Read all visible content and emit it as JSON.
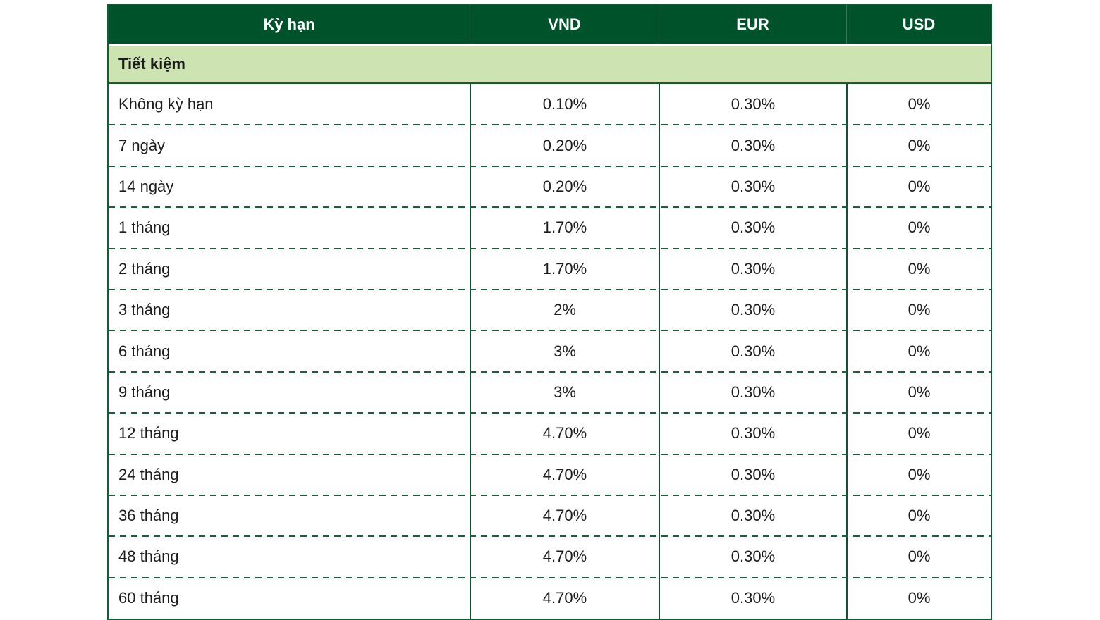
{
  "page": {
    "background": "#ffffff"
  },
  "table": {
    "columns": [
      {
        "key": "term",
        "label": "Kỳ hạn"
      },
      {
        "key": "vnd",
        "label": "VND"
      },
      {
        "key": "eur",
        "label": "EUR"
      },
      {
        "key": "usd",
        "label": "USD"
      }
    ],
    "section_label": "Tiết kiệm",
    "rows": [
      {
        "term": "Không kỳ hạn",
        "vnd": "0.10%",
        "eur": "0.30%",
        "usd": "0%"
      },
      {
        "term": "7 ngày",
        "vnd": "0.20%",
        "eur": "0.30%",
        "usd": "0%"
      },
      {
        "term": "14 ngày",
        "vnd": "0.20%",
        "eur": "0.30%",
        "usd": "0%"
      },
      {
        "term": "1 tháng",
        "vnd": "1.70%",
        "eur": "0.30%",
        "usd": "0%"
      },
      {
        "term": "2 tháng",
        "vnd": "1.70%",
        "eur": "0.30%",
        "usd": "0%"
      },
      {
        "term": "3 tháng",
        "vnd": "2%",
        "eur": "0.30%",
        "usd": "0%"
      },
      {
        "term": "6 tháng",
        "vnd": "3%",
        "eur": "0.30%",
        "usd": "0%"
      },
      {
        "term": "9 tháng",
        "vnd": "3%",
        "eur": "0.30%",
        "usd": "0%"
      },
      {
        "term": "12 tháng",
        "vnd": "4.70%",
        "eur": "0.30%",
        "usd": "0%"
      },
      {
        "term": "24 tháng",
        "vnd": "4.70%",
        "eur": "0.30%",
        "usd": "0%"
      },
      {
        "term": "36 tháng",
        "vnd": "4.70%",
        "eur": "0.30%",
        "usd": "0%"
      },
      {
        "term": "48 tháng",
        "vnd": "4.70%",
        "eur": "0.30%",
        "usd": "0%"
      },
      {
        "term": "60 tháng",
        "vnd": "4.70%",
        "eur": "0.30%",
        "usd": "0%"
      }
    ],
    "colors": {
      "header_bg": "#00522b",
      "header_text": "#ffffff",
      "section_bg": "#cee3b2",
      "border_solid": "#14502f",
      "border_dashed": "#1b5e3c",
      "text": "#1c1c1c"
    }
  }
}
